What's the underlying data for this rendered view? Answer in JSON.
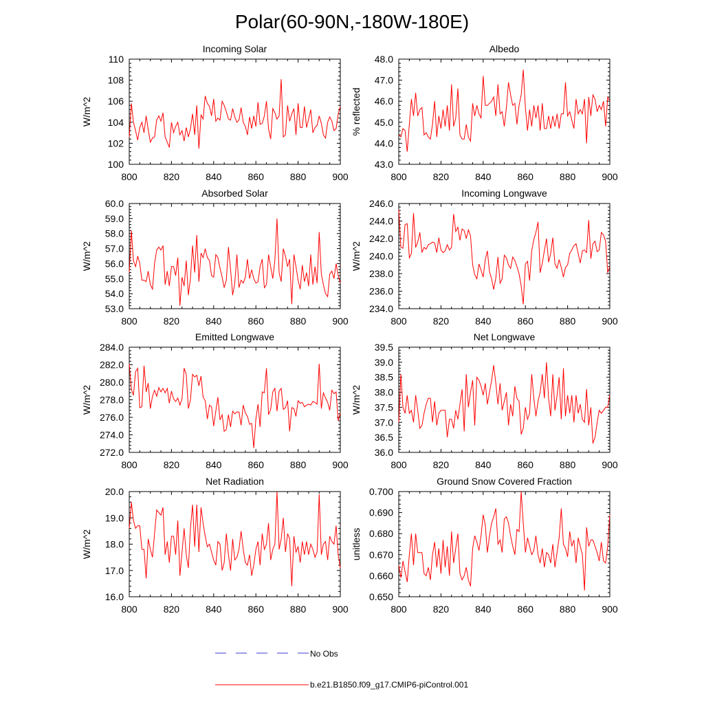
{
  "title": "Polar(60-90N,-180W-180E)",
  "colors": {
    "series": "#ff0000",
    "obs": "#3b3bd6",
    "axis": "#000000"
  },
  "legend": [
    {
      "label": "No Obs",
      "style": "dashed",
      "color": "#3b3bd6"
    },
    {
      "label": "b.e21.B1850.f09_g17.CMIP6-piControl.001",
      "style": "solid",
      "color": "#ff0000"
    }
  ],
  "chart_data": [
    {
      "type": "line",
      "title": "Incoming Solar",
      "ylabel": "W/m^2",
      "xlim": [
        800,
        900
      ],
      "ylim": [
        100,
        110
      ],
      "xticks": [
        800,
        820,
        840,
        860,
        880,
        900
      ],
      "xtick_labels": [
        "800",
        "820",
        "840",
        "860",
        "880",
        "900"
      ],
      "yticks": [
        100,
        102,
        104,
        106,
        108,
        110
      ],
      "ytick_labels": [
        "100",
        "102",
        "104",
        "106",
        "108",
        "110"
      ],
      "x_start": 800,
      "values": [
        102.6,
        105.8,
        104.0,
        103.2,
        102.3,
        103.5,
        104.0,
        103.0,
        104.6,
        103.3,
        102.1,
        102.5,
        102.6,
        104.2,
        104.6,
        104.1,
        104.9,
        102.6,
        102.1,
        101.6,
        104.0,
        103.0,
        103.6,
        104.0,
        102.8,
        103.2,
        102.2,
        103.5,
        102.6,
        103.4,
        104.8,
        102.8,
        105.6,
        101.5,
        104.7,
        104.3,
        106.5,
        105.8,
        105.5,
        104.6,
        106.2,
        104.1,
        104.4,
        104.2,
        106.0,
        105.6,
        105.0,
        104.3,
        104.2,
        105.3,
        104.5,
        104.0,
        104.2,
        105.4,
        104.0,
        103.6,
        102.8,
        104.5,
        103.4,
        104.6,
        103.6,
        105.9,
        103.8,
        103.9,
        104.6,
        106.0,
        103.4,
        102.4,
        105.3,
        104.9,
        104.3,
        104.6,
        108.1,
        102.6,
        102.8,
        105.6,
        104.1,
        104.8,
        105.3,
        102.8,
        105.8,
        103.5,
        103.5,
        105.5,
        103.5,
        104.3,
        105.2,
        103.0,
        103.5,
        103.7,
        104.6,
        103.9,
        102.8,
        102.5,
        104.0,
        104.5,
        104.1,
        103.2,
        103.4,
        104.8,
        105.5
      ]
    },
    {
      "type": "line",
      "title": "Albedo",
      "ylabel": "% reflected",
      "xlim": [
        800,
        900
      ],
      "ylim": [
        43,
        48
      ],
      "xticks": [
        800,
        820,
        840,
        860,
        880,
        900
      ],
      "xtick_labels": [
        "800",
        "820",
        "840",
        "860",
        "880",
        "900"
      ],
      "yticks": [
        43,
        44,
        45,
        46,
        47,
        48
      ],
      "ytick_labels": [
        "43.0",
        "44.0",
        "45.0",
        "46.0",
        "47.0",
        "48.0"
      ],
      "x_start": 800,
      "values": [
        44.4,
        44.3,
        44.7,
        44.6,
        43.6,
        44.9,
        46.1,
        45.3,
        46.4,
        45.3,
        45.6,
        45.7,
        44.4,
        44.5,
        44.3,
        44.2,
        44.9,
        46.0,
        44.3,
        45.3,
        44.7,
        45.6,
        44.8,
        45.8,
        44.6,
        46.8,
        44.8,
        45.2,
        46.6,
        44.4,
        44.2,
        44.2,
        44.9,
        44.3,
        44.1,
        45.9,
        45.3,
        45.8,
        45.4,
        45.2,
        47.2,
        45.8,
        45.8,
        45.9,
        46.0,
        46.2,
        45.3,
        46.8,
        45.4,
        45.5,
        44.8,
        45.7,
        46.9,
        46.3,
        45.8,
        45.9,
        44.9,
        45.8,
        46.3,
        47.5,
        45.7,
        44.6,
        45.6,
        44.8,
        45.8,
        45.2,
        45.8,
        44.6,
        45.9,
        44.7,
        44.7,
        45.3,
        44.7,
        45.3,
        44.8,
        45.4,
        44.7,
        45.4,
        45.4,
        46.9,
        45.3,
        45.5,
        45.1,
        44.7,
        46.1,
        45.4,
        45.6,
        45.4,
        46.1,
        44.0,
        46.2,
        45.3,
        46.3,
        46.1,
        45.5,
        45.8,
        45.6,
        46.0,
        44.8,
        46.2,
        46.0
      ]
    },
    {
      "type": "line",
      "title": "Absorbed Solar",
      "ylabel": "W/m^2",
      "xlim": [
        800,
        900
      ],
      "ylim": [
        53,
        60
      ],
      "xticks": [
        800,
        820,
        840,
        860,
        880,
        900
      ],
      "xtick_labels": [
        "800",
        "820",
        "840",
        "860",
        "880",
        "900"
      ],
      "yticks": [
        53,
        54,
        55,
        56,
        57,
        58,
        59,
        60
      ],
      "ytick_labels": [
        "53.0",
        "54.0",
        "55.0",
        "56.0",
        "57.0",
        "58.0",
        "59.0",
        "60.0"
      ],
      "x_start": 800,
      "values": [
        55.4,
        58.2,
        56.2,
        55.8,
        56.5,
        56.0,
        54.9,
        54.9,
        54.8,
        55.5,
        54.6,
        54.3,
        56.0,
        56.9,
        57.1,
        56.9,
        57.2,
        54.6,
        55.5,
        54.5,
        55.8,
        55.8,
        55.2,
        56.4,
        53.2,
        55.1,
        54.5,
        56.2,
        53.9,
        55.0,
        57.2,
        55.4,
        57.9,
        54.8,
        56.7,
        56.4,
        57.0,
        56.4,
        56.2,
        55.2,
        55.1,
        56.6,
        56.4,
        55.7,
        55.1,
        54.4,
        54.9,
        57.1,
        55.6,
        53.9,
        54.7,
        56.6,
        54.4,
        54.9,
        54.7,
        55.1,
        56.3,
        55.0,
        55.6,
        55.0,
        54.7,
        54.8,
        55.8,
        56.3,
        54.4,
        54.6,
        56.6,
        55.8,
        55.0,
        56.2,
        59.0,
        55.4,
        54.8,
        57.0,
        56.5,
        55.8,
        56.3,
        53.3,
        56.6,
        55.8,
        54.9,
        54.3,
        55.9,
        54.8,
        55.4,
        54.5,
        56.6,
        54.6,
        55.8,
        54.7,
        58.1,
        55.3,
        54.6,
        54.0,
        53.8,
        55.3,
        55.5,
        55.0,
        56.0,
        55.2,
        54.7
      ]
    },
    {
      "type": "line",
      "title": "Incoming Longwave",
      "ylabel": "W/m^2",
      "xlim": [
        800,
        900
      ],
      "ylim": [
        234,
        246
      ],
      "xticks": [
        800,
        820,
        840,
        860,
        880,
        900
      ],
      "xtick_labels": [
        "800",
        "820",
        "840",
        "860",
        "880",
        "900"
      ],
      "yticks": [
        234,
        236,
        238,
        240,
        242,
        244,
        246
      ],
      "ytick_labels": [
        "234.0",
        "236.0",
        "238.0",
        "240.0",
        "242.0",
        "244.0",
        "246.0"
      ],
      "x_start": 800,
      "values": [
        245.3,
        241.0,
        240.9,
        243.6,
        243.7,
        239.8,
        240.3,
        244.9,
        241.0,
        241.6,
        242.7,
        240.4,
        241.0,
        240.8,
        241.3,
        241.4,
        241.6,
        241.5,
        240.4,
        242.1,
        240.7,
        240.4,
        240.6,
        241.3,
        240.7,
        241.0,
        244.8,
        242.8,
        243.3,
        241.8,
        243.1,
        242.9,
        242.0,
        243.0,
        242.3,
        239.0,
        237.9,
        237.4,
        239.1,
        238.4,
        237.6,
        239.6,
        240.6,
        238.2,
        237.4,
        236.2,
        237.5,
        239.9,
        236.9,
        237.4,
        240.1,
        239.8,
        239.0,
        238.6,
        239.9,
        239.5,
        238.8,
        238.0,
        236.6,
        234.5,
        239.1,
        239.4,
        237.2,
        240.6,
        241.9,
        242.7,
        243.9,
        238.1,
        239.2,
        240.6,
        242.0,
        239.3,
        240.3,
        242.1,
        239.1,
        238.6,
        239.6,
        238.7,
        237.6,
        238.7,
        239.0,
        240.3,
        240.7,
        241.2,
        241.4,
        240.3,
        239.2,
        240.6,
        240.7,
        240.4,
        244.1,
        239.7,
        241.4,
        241.7,
        240.5,
        240.7,
        242.7,
        242.4,
        241.7,
        238.1,
        238.8
      ]
    },
    {
      "type": "line",
      "title": "Emitted Longwave",
      "ylabel": "W/m^2",
      "xlim": [
        800,
        900
      ],
      "ylim": [
        272,
        284
      ],
      "xticks": [
        800,
        820,
        840,
        860,
        880,
        900
      ],
      "xtick_labels": [
        "800",
        "820",
        "840",
        "860",
        "880",
        "900"
      ],
      "yticks": [
        272,
        274,
        276,
        278,
        280,
        282,
        284
      ],
      "ytick_labels": [
        "272.0",
        "274.0",
        "276.0",
        "278.0",
        "280.0",
        "282.0",
        "284.0"
      ],
      "x_start": 800,
      "values": [
        282.1,
        279.2,
        278.5,
        281.2,
        281.6,
        277.1,
        277.2,
        281.9,
        278.9,
        279.9,
        277.0,
        278.4,
        279.1,
        278.4,
        279.4,
        278.9,
        279.3,
        278.8,
        279.3,
        277.6,
        279.0,
        278.1,
        277.8,
        278.2,
        277.4,
        278.1,
        281.6,
        280.9,
        277.0,
        278.0,
        280.9,
        280.6,
        280.8,
        279.6,
        280.7,
        278.3,
        277.9,
        275.8,
        277.4,
        277.2,
        275.0,
        276.7,
        278.3,
        275.7,
        276.3,
        274.4,
        274.6,
        276.3,
        274.9,
        276.7,
        276.4,
        276.6,
        276.6,
        275.1,
        277.4,
        276.5,
        276.1,
        275.2,
        275.3,
        272.5,
        275.8,
        277.5,
        274.9,
        278.9,
        278.8,
        281.6,
        276.3,
        276.9,
        278.9,
        279.3,
        276.7,
        279.0,
        279.3,
        276.9,
        277.1,
        277.9,
        274.4,
        277.1,
        277.0,
        276.1,
        277.9,
        277.6,
        277.7,
        277.2,
        277.4,
        277.5,
        277.4,
        277.8,
        277.7,
        277.5,
        282.1,
        277.0,
        278.8,
        278.2,
        277.7,
        276.8,
        279.1,
        278.7,
        278.9,
        275.6,
        276.5
      ]
    },
    {
      "type": "line",
      "title": "Net Longwave",
      "ylabel": "W/m^2",
      "xlim": [
        800,
        900
      ],
      "ylim": [
        36,
        39.5
      ],
      "xticks": [
        800,
        820,
        840,
        860,
        880,
        900
      ],
      "xtick_labels": [
        "800",
        "820",
        "840",
        "860",
        "880",
        "900"
      ],
      "yticks": [
        36,
        36.5,
        37,
        37.5,
        38,
        38.5,
        39,
        39.5
      ],
      "ytick_labels": [
        "36.0",
        "36.5",
        "37.0",
        "37.5",
        "38.0",
        "38.5",
        "39.0",
        "39.5"
      ],
      "x_start": 800,
      "values": [
        37.0,
        38.6,
        37.5,
        37.3,
        37.9,
        37.3,
        37.4,
        37.0,
        37.9,
        37.4,
        36.8,
        36.9,
        37.3,
        37.6,
        37.8,
        37.8,
        37.0,
        37.7,
        36.9,
        37.3,
        37.4,
        37.4,
        37.4,
        36.5,
        37.1,
        37.1,
        36.8,
        37.4,
        37.1,
        37.6,
        38.1,
        36.7,
        38.6,
        37.5,
        38.0,
        38.4,
        36.9,
        38.5,
        38.4,
        38.2,
        37.9,
        38.3,
        37.6,
        38.0,
        38.4,
        38.9,
        38.3,
        37.6,
        38.3,
        37.4,
        37.7,
        38.0,
        36.9,
        37.6,
        37.2,
        38.2,
        37.8,
        37.7,
        36.6,
        36.8,
        37.5,
        37.1,
        37.3,
        38.6,
        37.8,
        37.2,
        37.7,
        38.0,
        38.6,
        37.8,
        39.0,
        37.8,
        37.2,
        38.6,
        37.4,
        37.9,
        38.5,
        37.1,
        38.8,
        37.2,
        37.9,
        37.3,
        37.9,
        37.0,
        37.9,
        37.3,
        37.6,
        37.1,
        37.0,
        38.1,
        36.9,
        37.5,
        36.3,
        36.5,
        37.0,
        37.4,
        37.3,
        37.4,
        37.5,
        37.5,
        37.9
      ]
    },
    {
      "type": "line",
      "title": "Net Radiation",
      "ylabel": "W/m^2",
      "xlim": [
        800,
        900
      ],
      "ylim": [
        16,
        20
      ],
      "xticks": [
        800,
        820,
        840,
        860,
        880,
        900
      ],
      "xtick_labels": [
        "800",
        "820",
        "840",
        "860",
        "880",
        "900"
      ],
      "yticks": [
        16,
        17,
        18,
        19,
        20
      ],
      "ytick_labels": [
        "16.0",
        "17.0",
        "18.0",
        "19.0",
        "20.0"
      ],
      "x_start": 800,
      "values": [
        18.6,
        19.6,
        18.9,
        18.6,
        18.7,
        18.7,
        17.8,
        17.8,
        16.7,
        18.2,
        17.8,
        17.5,
        18.4,
        19.3,
        19.2,
        19.1,
        19.4,
        17.6,
        18.1,
        17.3,
        18.3,
        18.3,
        17.6,
        18.9,
        16.8,
        17.7,
        18.6,
        17.6,
        17.1,
        18.6,
        19.5,
        17.9,
        19.5,
        17.7,
        19.4,
        18.8,
        18.3,
        17.9,
        18.0,
        17.7,
        17.4,
        17.2,
        18.1,
        18.0,
        17.0,
        17.3,
        18.4,
        17.6,
        17.0,
        18.2,
        17.4,
        17.5,
        17.8,
        18.5,
        17.8,
        17.3,
        17.2,
        17.6,
        16.8,
        17.2,
        17.8,
        18.1,
        17.2,
        18.4,
        17.8,
        18.0,
        18.8,
        17.4,
        17.8,
        18.0,
        20.0,
        17.8,
        18.2,
        19.0,
        17.7,
        18.4,
        18.2,
        16.4,
        18.3,
        17.7,
        17.9,
        17.3,
        18.1,
        17.6,
        18.1,
        17.6,
        18.0,
        17.8,
        17.5,
        17.7,
        19.9,
        17.6,
        18.0,
        18.1,
        17.4,
        18.3,
        18.1,
        18.0,
        18.7,
        17.6,
        17.1
      ]
    },
    {
      "type": "line",
      "title": "Ground Snow Covered Fraction",
      "ylabel": "unitless",
      "xlim": [
        800,
        900
      ],
      "ylim": [
        0.65,
        0.7
      ],
      "xticks": [
        800,
        820,
        840,
        860,
        880,
        900
      ],
      "xtick_labels": [
        "800",
        "820",
        "840",
        "860",
        "880",
        "900"
      ],
      "yticks": [
        0.65,
        0.66,
        0.67,
        0.68,
        0.69,
        0.7
      ],
      "ytick_labels": [
        "0.650",
        "0.660",
        "0.670",
        "0.680",
        "0.690",
        "0.700"
      ],
      "x_start": 800,
      "values": [
        0.665,
        0.659,
        0.667,
        0.662,
        0.657,
        0.67,
        0.68,
        0.665,
        0.68,
        0.671,
        0.671,
        0.671,
        0.661,
        0.66,
        0.664,
        0.658,
        0.67,
        0.676,
        0.664,
        0.673,
        0.661,
        0.677,
        0.664,
        0.674,
        0.66,
        0.681,
        0.666,
        0.673,
        0.68,
        0.661,
        0.658,
        0.66,
        0.664,
        0.658,
        0.655,
        0.673,
        0.679,
        0.676,
        0.672,
        0.679,
        0.689,
        0.684,
        0.671,
        0.679,
        0.685,
        0.688,
        0.692,
        0.675,
        0.677,
        0.671,
        0.687,
        0.688,
        0.685,
        0.679,
        0.674,
        0.67,
        0.682,
        0.681,
        0.7,
        0.685,
        0.671,
        0.678,
        0.674,
        0.67,
        0.672,
        0.679,
        0.67,
        0.666,
        0.673,
        0.664,
        0.671,
        0.67,
        0.666,
        0.675,
        0.664,
        0.671,
        0.678,
        0.692,
        0.675,
        0.673,
        0.669,
        0.681,
        0.674,
        0.677,
        0.666,
        0.678,
        0.674,
        0.67,
        0.653,
        0.683,
        0.674,
        0.677,
        0.677,
        0.674,
        0.671,
        0.667,
        0.676,
        0.667,
        0.666,
        0.674,
        0.689
      ]
    }
  ]
}
